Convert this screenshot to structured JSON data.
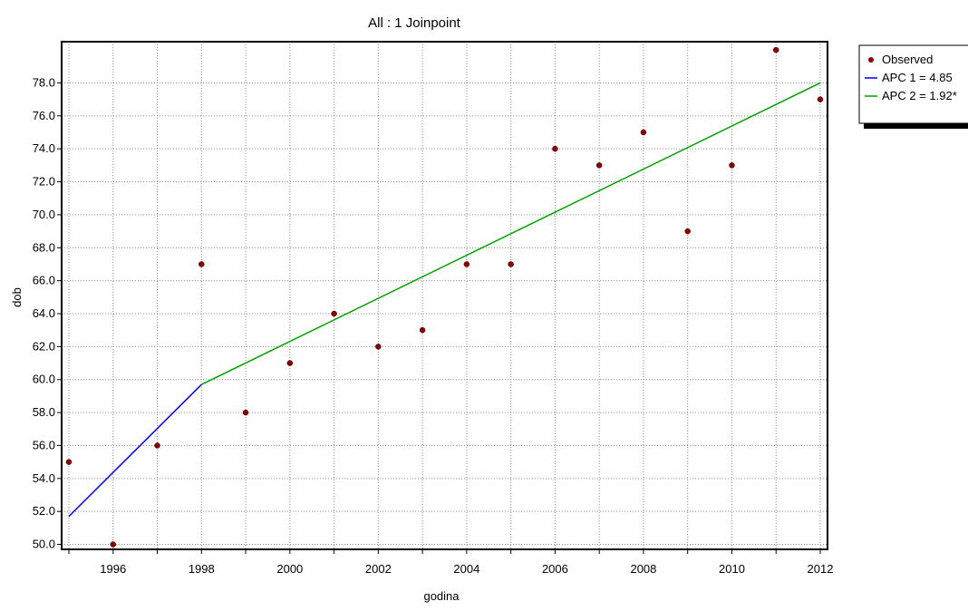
{
  "chart_data": {
    "type": "line",
    "title": "All : 1 Joinpoint",
    "xlabel": "godina",
    "ylabel": "dob",
    "xlim": [
      1995,
      2012
    ],
    "ylim": [
      49.7,
      80.5
    ],
    "x_ticks": [
      1996,
      1998,
      2000,
      2002,
      2004,
      2006,
      2008,
      2010,
      2012
    ],
    "x_tick_labels": [
      "1996",
      "1998",
      "2000",
      "2002",
      "2004",
      "2006",
      "2008",
      "2010",
      "2012"
    ],
    "y_ticks": [
      50,
      52,
      54,
      56,
      58,
      60,
      62,
      64,
      66,
      68,
      70,
      72,
      74,
      76,
      78
    ],
    "y_tick_labels": [
      "50.0",
      "52.0",
      "54.0",
      "56.0",
      "58.0",
      "60.0",
      "62.0",
      "64.0",
      "66.0",
      "68.0",
      "70.0",
      "72.0",
      "74.0",
      "76.0",
      "78.0"
    ],
    "grid": true,
    "legend_position": "right",
    "series": [
      {
        "name": "Observed",
        "kind": "scatter",
        "color": "#8b0000",
        "x": [
          1995,
          1996,
          1997,
          1998,
          1999,
          2000,
          2001,
          2002,
          2003,
          2004,
          2005,
          2006,
          2007,
          2008,
          2009,
          2010,
          2011,
          2012
        ],
        "y": [
          55.0,
          50.0,
          56.0,
          67.0,
          58.0,
          61.0,
          64.0,
          62.0,
          63.0,
          67.0,
          67.0,
          74.0,
          73.0,
          75.0,
          69.0,
          73.0,
          80.0,
          77.0
        ]
      },
      {
        "name": "APC 1 = 4.85",
        "kind": "line",
        "color": "#0000ff",
        "x": [
          1995,
          1998
        ],
        "y": [
          51.7,
          59.7
        ]
      },
      {
        "name": "APC 2 = 1.92*",
        "kind": "line",
        "color": "#00a000",
        "x": [
          1998,
          2012
        ],
        "y": [
          59.7,
          78.0
        ]
      }
    ]
  }
}
